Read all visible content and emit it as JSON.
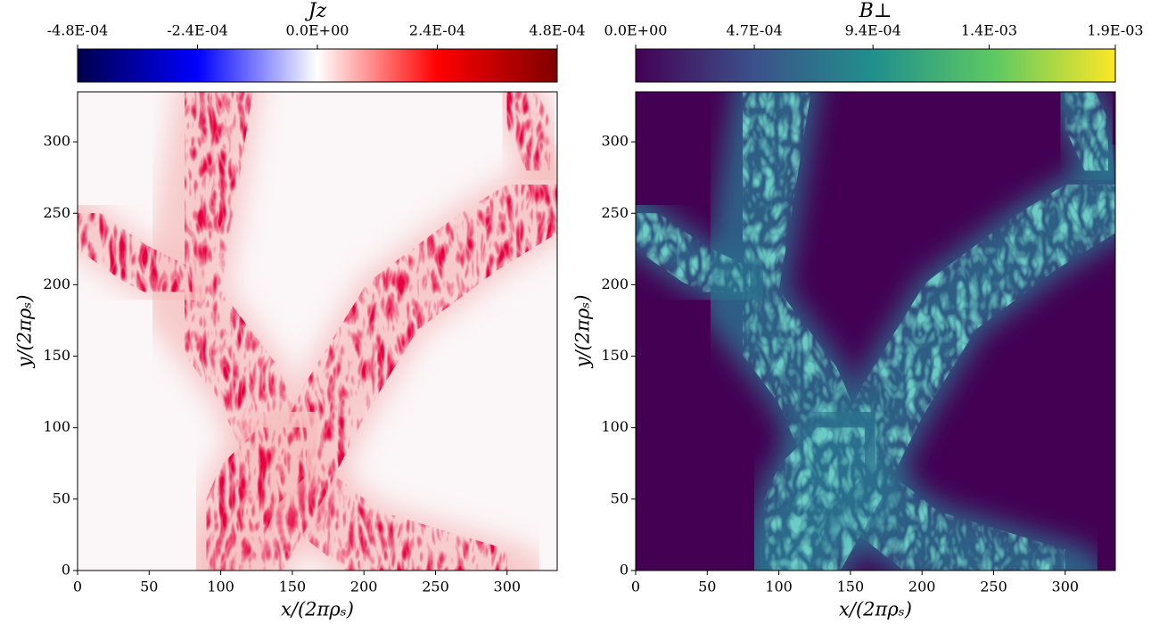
{
  "chart_data": [
    {
      "type": "heatmap",
      "colorbar_label": "Jz",
      "colormap": "seismic",
      "xlabel": "x/(2πρₛ)",
      "ylabel": "y/(2πρₛ)",
      "xlim": [
        0,
        335
      ],
      "xticks": [
        0,
        50,
        100,
        150,
        200,
        250,
        300
      ],
      "ylim": [
        0,
        335
      ],
      "yticks": [
        0,
        50,
        100,
        150,
        200,
        250,
        300
      ],
      "clim": [
        -0.00048,
        0.00048
      ],
      "cticks": [
        {
          "value": -0.00048,
          "label": "-4.8E-04"
        },
        {
          "value": -0.00024,
          "label": "-2.4E-04"
        },
        {
          "value": 0,
          "label": "0.0E+00"
        },
        {
          "value": 0.00024,
          "label": "2.4E-04"
        },
        {
          "value": 0.00048,
          "label": "4.8E-04"
        }
      ]
    },
    {
      "type": "heatmap",
      "colorbar_label": "B⊥",
      "colormap": "viridis",
      "xlabel": "x/(2πρₛ)",
      "ylabel": "y/(2πρₛ)",
      "xlim": [
        0,
        335
      ],
      "xticks": [
        0,
        50,
        100,
        150,
        200,
        250,
        300
      ],
      "ylim": [
        0,
        335
      ],
      "yticks": [
        0,
        50,
        100,
        150,
        200,
        250,
        300
      ],
      "clim": [
        0,
        0.0019
      ],
      "cticks": [
        {
          "value": 0,
          "label": "0.0E+00"
        },
        {
          "value": 0.00047,
          "label": "4.7E-04"
        },
        {
          "value": 0.00094,
          "label": "9.4E-04"
        },
        {
          "value": 0.0014,
          "label": "1.4E-03"
        },
        {
          "value": 0.0019,
          "label": "1.9E-03"
        }
      ]
    }
  ]
}
